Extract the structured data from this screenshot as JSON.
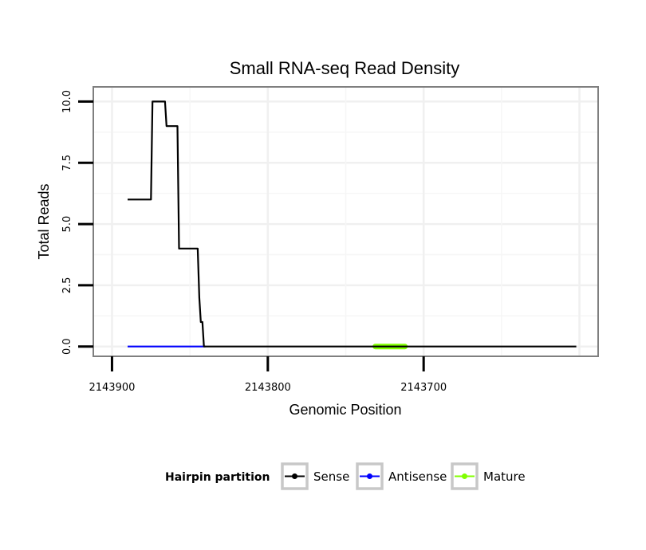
{
  "chart_data": {
    "type": "line",
    "title": "Small RNA-seq Read Density",
    "xlabel": "Genomic Position",
    "ylabel": "Total Reads",
    "x_reversed": true,
    "xlim": [
      2143912,
      2143588
    ],
    "ylim": [
      -0.4,
      10.6
    ],
    "x_ticks": [
      2143900,
      2143800,
      2143700
    ],
    "x_tick_labels": [
      "2143900",
      "2143800",
      "2143700"
    ],
    "y_ticks": [
      0,
      2.5,
      5,
      7.5,
      10
    ],
    "y_tick_labels": [
      "0.0",
      "2.5",
      "5.0",
      "7.5",
      "10.0"
    ],
    "grid": true,
    "series": [
      {
        "name": "Sense",
        "color": "#000000",
        "x": [
          2143890,
          2143875,
          2143874,
          2143866,
          2143865,
          2143862,
          2143861,
          2143858,
          2143857,
          2143845,
          2143844,
          2143843,
          2143842,
          2143841,
          2143840,
          2143770,
          2143740,
          2143730,
          2143700,
          2143650,
          2143602
        ],
        "y": [
          6,
          6,
          10,
          10,
          9,
          9,
          9,
          9,
          4,
          4,
          2,
          1,
          1,
          0,
          0,
          0,
          0,
          0,
          0,
          0,
          0
        ]
      },
      {
        "name": "Antisense",
        "color": "#0000ff",
        "x": [
          2143890,
          2143840
        ],
        "y": [
          0,
          0
        ]
      },
      {
        "name": "Mature",
        "color": "#80ff00",
        "x": [
          2143731,
          2143712
        ],
        "y": [
          0,
          0
        ]
      }
    ],
    "legend": {
      "title": "Hairpin partition",
      "position": "bottom",
      "entries": [
        "Sense",
        "Antisense",
        "Mature"
      ]
    }
  }
}
